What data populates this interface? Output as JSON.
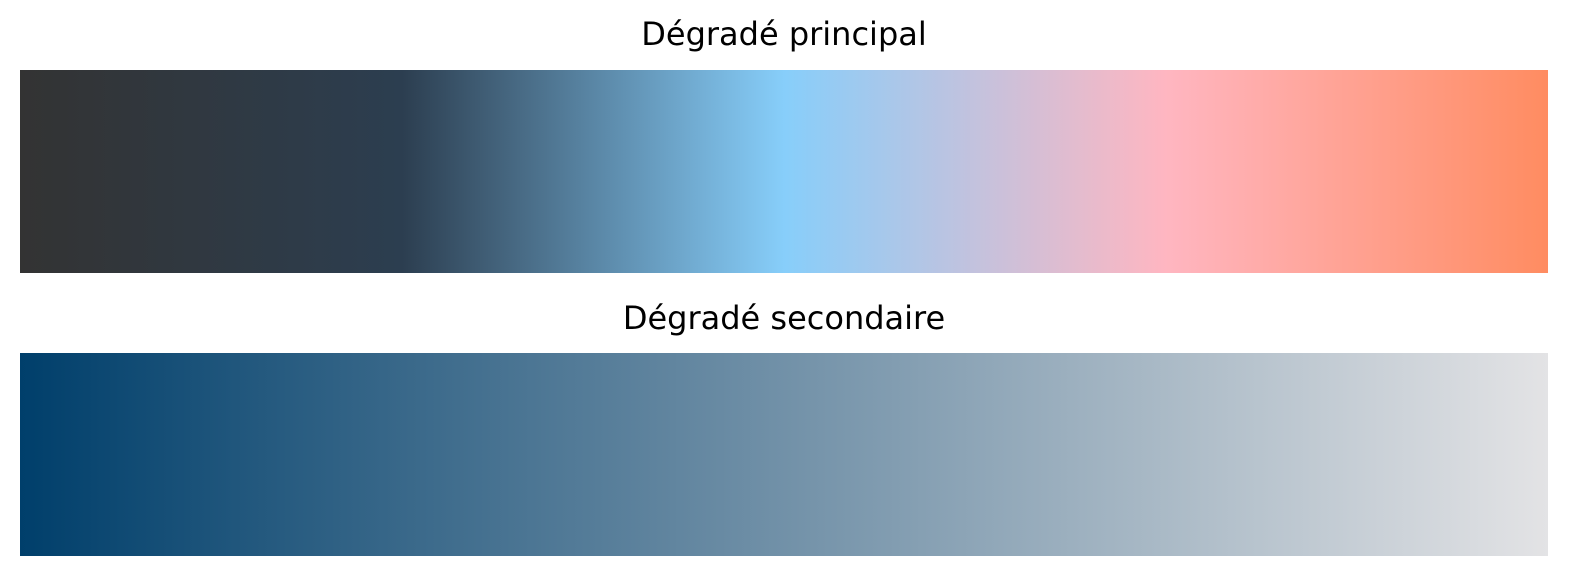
{
  "gradients": [
    {
      "title": "Dégradé principal",
      "stops": [
        {
          "color": "#333333",
          "offset": 0.0
        },
        {
          "color": "#2c3e50",
          "offset": 0.25
        },
        {
          "color": "#87cefa",
          "offset": 0.5
        },
        {
          "color": "#ffb6c1",
          "offset": 0.75
        },
        {
          "color": "#ff8c61",
          "offset": 1.0
        }
      ]
    },
    {
      "title": "Dégradé secondaire",
      "stops": [
        {
          "color": "#003f6b",
          "offset": 0.0
        },
        {
          "color": "#e3e3e5",
          "offset": 1.0
        }
      ]
    }
  ]
}
